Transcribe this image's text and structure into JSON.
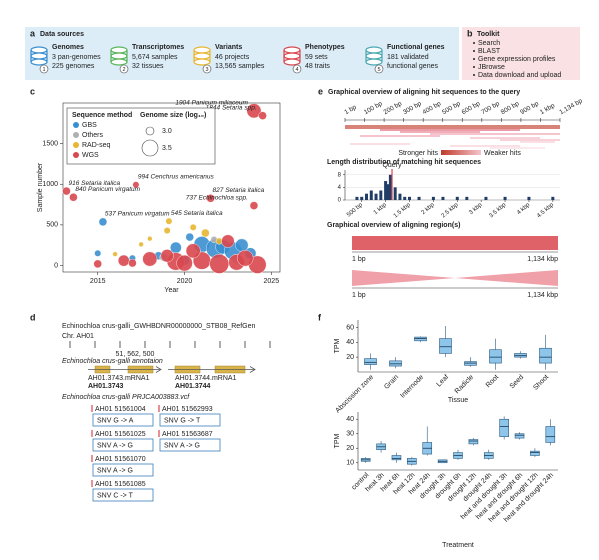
{
  "panel_a": {
    "letter": "a",
    "title": "Data sources",
    "items": [
      {
        "number": "1",
        "name": "Genomes",
        "lines": [
          "3 pan-genomes",
          "225 genomes"
        ],
        "color": "#3a8fd0"
      },
      {
        "number": "2",
        "name": "Transcriptomes",
        "lines": [
          "5,674 samples",
          "32 tissues"
        ],
        "color": "#5ab55a"
      },
      {
        "number": "3",
        "name": "Variants",
        "lines": [
          "46 projects",
          "13,565 samples"
        ],
        "color": "#e8b630"
      },
      {
        "number": "4",
        "name": "Phenotypes",
        "lines": [
          "59 sets",
          "48 traits"
        ],
        "color": "#d9474f"
      },
      {
        "number": "5",
        "name": "Functional genes",
        "lines": [
          "181 validated",
          "functional genes"
        ],
        "color": "#4aa8b0"
      }
    ]
  },
  "panel_b": {
    "letter": "b",
    "title": "Toolkit",
    "items": [
      "Search",
      "BLAST",
      "Gene expression profiles",
      "JBrowse",
      "Data download and upload"
    ]
  },
  "panel_d": {
    "letter": "d",
    "reference": "Echinochloa crus-galli_GWHBDNR00000000_STB08_RefGen",
    "chromosome": "Chr. AH01",
    "position": "51, 562, 500",
    "annotation_track": "Echinochloa crus-galli annotaion",
    "genes": [
      {
        "transcript": "AH01.3743.mRNA1",
        "gene": "AH01.3743"
      },
      {
        "transcript": "AH01.3744.mRNA1",
        "gene": "AH01.3744"
      }
    ],
    "vcf_track": "Echinochloa crus-galli PRJCA003883.vcf",
    "snvs": [
      {
        "label": "AH01 51561004",
        "change": "SNV G -> A"
      },
      {
        "label": "AH01 51562993",
        "change": "SNV G -> T"
      },
      {
        "label": "AH01 51561025",
        "change": "SNV A -> G"
      },
      {
        "label": "AH01 51563687",
        "change": "SNV A -> G"
      },
      {
        "label": "AH01 51561070",
        "change": "SNV A -> G"
      },
      {
        "label": "AH01 51561085",
        "change": "SNV C -> T"
      }
    ]
  },
  "panel_e": {
    "letter": "e",
    "title": "Graphical overview of aligning hit sequences to the query",
    "ruler": [
      "1 bp",
      "100 bp",
      "200 bp",
      "300 bp",
      "400 bp",
      "500 bp",
      "600 bp",
      "700 bp",
      "800 bp",
      "900 bp",
      "1 kbp",
      "1,134 bp"
    ],
    "stronger": "Stronger hits",
    "weaker": "Weaker hits",
    "region_title": "Graphical overview of aligning region(s)",
    "region_axes": [
      {
        "start": "1 bp",
        "end": "1,134 kbp"
      },
      {
        "start": "1 bp",
        "end": "1,134 kbp"
      }
    ]
  },
  "chart_data": [
    {
      "type": "scatter",
      "panel": "c",
      "xlabel": "Year",
      "ylabel": "Sample number",
      "xlim": [
        2013,
        2025.5
      ],
      "ylim": [
        -80,
        2000
      ],
      "xticks": [
        2015,
        2020,
        2025
      ],
      "yticks": [
        0,
        500,
        1000,
        1500
      ],
      "legend_title": "Sequence method",
      "size_title": "Genome size (log₁₀)",
      "size_legend": [
        {
          "value": 3,
          "label": "3.0"
        },
        {
          "value": 3.5,
          "label": "3.5"
        }
      ],
      "series": [
        {
          "name": "GBS",
          "color": "#3a8fd0",
          "x": [
            2015.3,
            2015,
            2019.5,
            2020.3,
            2021,
            2021.8,
            2022.2,
            2022.8,
            2023.3,
            2018.5,
            2017,
            2020,
            2023.8
          ],
          "y": [
            537,
            150,
            220,
            350,
            260,
            210,
            230,
            180,
            250,
            120,
            90,
            60,
            150
          ],
          "sizes": [
            3.0,
            2.9,
            3.2,
            3.0,
            3.5,
            3.7,
            3.4,
            3.6,
            3.3,
            3.0,
            2.9,
            3.1,
            3.2
          ]
        },
        {
          "name": "Others",
          "color": "#b0b0b0",
          "x": [
            2018.8,
            2021.7,
            2023
          ],
          "y": [
            100,
            320,
            80
          ],
          "sizes": [
            3.0,
            2.9,
            3.1
          ]
        },
        {
          "name": "RAD-seq",
          "color": "#e8b630",
          "x": [
            2019.1,
            2018,
            2019,
            2020.5,
            2021.2,
            2017.5,
            2022,
            2016
          ],
          "y": [
            545,
            330,
            430,
            470,
            400,
            260,
            300,
            140
          ],
          "sizes": [
            2.9,
            2.8,
            2.9,
            2.9,
            3.0,
            2.8,
            2.9,
            2.8
          ]
        },
        {
          "name": "WGS",
          "color": "#d9474f",
          "x": [
            2024,
            2024.5,
            2017.2,
            2013.2,
            2013.6,
            2021.5,
            2024,
            2019.5,
            2020,
            2021,
            2022,
            2023,
            2024.2,
            2018,
            2019,
            2016.5,
            2020.5,
            2022.5,
            2015,
            2023.5,
            2017
          ],
          "y": [
            1904,
            1844,
            994,
            916,
            840,
            827,
            737,
            50,
            30,
            60,
            20,
            40,
            10,
            80,
            120,
            60,
            180,
            300,
            20,
            90,
            30
          ],
          "sizes": [
            3.4,
            3.0,
            2.9,
            3.0,
            3.0,
            3.0,
            3.0,
            3.6,
            3.5,
            3.6,
            3.7,
            3.5,
            3.6,
            3.4,
            3.3,
            3.2,
            3.4,
            3.3,
            3.0,
            3.5,
            3.0
          ]
        }
      ],
      "annotations": [
        {
          "text": "1904 Panicum miliaceum",
          "x": 2024,
          "y": 1904
        },
        {
          "text": "1844 Setaria spp.",
          "x": 2024.5,
          "y": 1844
        },
        {
          "text": "994 Cenchrus americanus",
          "x": 2017.2,
          "y": 994
        },
        {
          "text": "916 Setaria italica",
          "x": 2013.2,
          "y": 916
        },
        {
          "text": "840 Panicum virgatum",
          "x": 2013.6,
          "y": 840
        },
        {
          "text": "827 Setaria italica",
          "x": 2021.5,
          "y": 827
        },
        {
          "text": "545 Setaria italica",
          "x": 2019.1,
          "y": 545
        },
        {
          "text": "737 Echinochloa spp.",
          "x": 2024,
          "y": 737
        },
        {
          "text": "537 Panicum virgatum",
          "x": 2015.3,
          "y": 537
        }
      ]
    },
    {
      "type": "bar",
      "panel": "e",
      "title": "Length distribution of matching hit sequences",
      "color": "#1f3d66",
      "x": [
        400,
        500,
        600,
        700,
        800,
        900,
        1000,
        1050,
        1100,
        1200,
        1300,
        1400,
        1500,
        1700,
        2000,
        2200,
        2500,
        2700,
        3100,
        3500,
        4000,
        4500
      ],
      "values": [
        1,
        1,
        2,
        3,
        2,
        3,
        6,
        5,
        8,
        4,
        2,
        1,
        1,
        1,
        1,
        1,
        1,
        1,
        1,
        1,
        1,
        1
      ],
      "xlim": [
        150,
        4650
      ],
      "xticks": [
        {
          "value": 500,
          "label": "500 bp"
        },
        {
          "value": 1000,
          "label": "1 kbp"
        },
        {
          "value": 1500,
          "label": "1.5 kbp"
        },
        {
          "value": 2000,
          "label": "2 kbp"
        },
        {
          "value": 2500,
          "label": "2.5 kbp"
        },
        {
          "value": 3000,
          "label": "3 kbp"
        },
        {
          "value": 3500,
          "label": "3.5 kbp"
        },
        {
          "value": 4000,
          "label": "4 kbp"
        },
        {
          "value": 4500,
          "label": "4.5 kbp"
        }
      ],
      "ylim": [
        0,
        9.5
      ],
      "yticks": [
        0,
        4,
        8
      ],
      "query": {
        "x": 1134,
        "label": "Query"
      }
    },
    {
      "type": "box",
      "panel": "f",
      "ylabel": "TPM",
      "xlabel": "Tissue",
      "color": "#8ec5ea",
      "categories": [
        "Abscission zone",
        "Grain",
        "Internode",
        "Leaf",
        "Radicle",
        "Root",
        "Seed",
        "Shoot"
      ],
      "ylim": [
        0,
        70
      ],
      "yticks": [
        20,
        40,
        60
      ],
      "min": [
        3,
        5,
        40,
        20,
        7,
        3,
        18,
        3
      ],
      "q1": [
        10,
        8,
        42,
        25,
        9,
        12,
        20,
        12
      ],
      "median": [
        13,
        11,
        45,
        34,
        12,
        20,
        22,
        20
      ],
      "q3": [
        18,
        15,
        47,
        45,
        14,
        30,
        25,
        32
      ],
      "max": [
        25,
        20,
        48,
        62,
        20,
        45,
        28,
        50
      ]
    },
    {
      "type": "box",
      "xlabel": "Treatment",
      "ylabel": "TPM",
      "color": "#8ec5ea",
      "categories": [
        "control",
        "heat 3h",
        "heat 6h",
        "heat 12h",
        "heat 24h",
        "drought 3h",
        "drought 6h",
        "drought 12h",
        "drought 24h",
        "heat and drought 3h",
        "heat and drought 6h",
        "heat and drought 12h",
        "heat and drought 24h"
      ],
      "ylim": [
        5,
        45
      ],
      "yticks": [
        10,
        20,
        30,
        40
      ],
      "min": [
        10,
        17,
        10,
        8,
        15,
        10,
        12,
        22,
        12,
        26,
        26,
        14,
        22
      ],
      "q1": [
        11,
        19,
        12,
        9,
        16,
        10,
        13,
        23,
        13,
        28,
        27,
        15,
        24
      ],
      "median": [
        12,
        21,
        13,
        11,
        20,
        11,
        15,
        25,
        15,
        35,
        29,
        17,
        28
      ],
      "q3": [
        13,
        23,
        15,
        13,
        24,
        12,
        17,
        26,
        17,
        40,
        30,
        18,
        35
      ],
      "max": [
        14,
        25,
        17,
        14,
        35,
        12,
        19,
        27,
        19,
        42,
        31,
        20,
        40
      ]
    }
  ]
}
